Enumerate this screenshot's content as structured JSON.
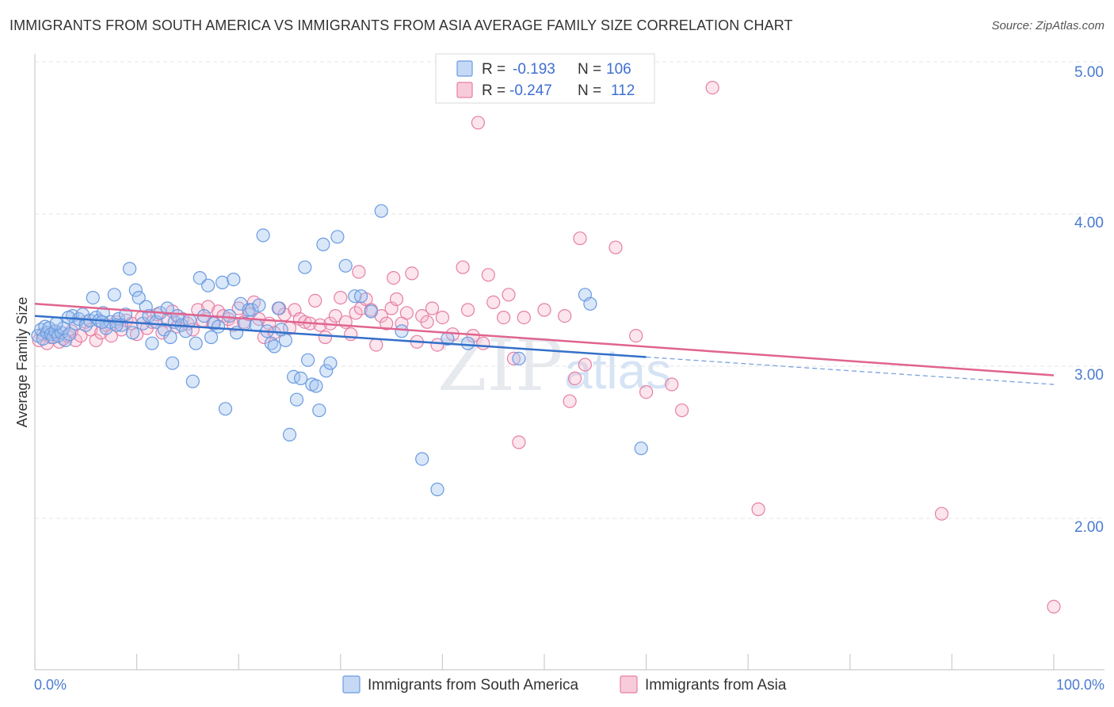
{
  "title": "IMMIGRANTS FROM SOUTH AMERICA VS IMMIGRANTS FROM ASIA AVERAGE FAMILY SIZE CORRELATION CHART",
  "source": "Source: ZipAtlas.com",
  "watermark": {
    "zip": "ZIP",
    "atlas": "atlas"
  },
  "stats": {
    "r_label": "R =",
    "n_label": "N =",
    "rows": [
      {
        "series": "Immigrants from South America",
        "r": "-0.193",
        "n": "106",
        "color": "#6a9be0",
        "fill": "#c5d9f6"
      },
      {
        "series": "Immigrants from Asia",
        "r": "-0.247",
        "n": "112",
        "color": "#e57fa4",
        "fill": "#f8cbda"
      }
    ]
  },
  "legend": [
    {
      "label": "Immigrants from South America",
      "fill": "#c5d9f6",
      "stroke": "#6a9be0"
    },
    {
      "label": "Immigrants from Asia",
      "fill": "#f8cbda",
      "stroke": "#e57fa4"
    }
  ],
  "chart_data": {
    "type": "scatter",
    "xlabel": "",
    "ylabel": "Average Family Size",
    "xlim": [
      0,
      100
    ],
    "ylim": [
      1.0,
      5.1
    ],
    "x_tick_labels": [
      {
        "value": 0,
        "label": "0.0%"
      },
      {
        "value": 100,
        "label": "100.0%"
      }
    ],
    "y_ticks": [
      2.0,
      3.0,
      4.0,
      5.0
    ],
    "y_tick_labels": [
      "2.00",
      "3.00",
      "4.00",
      "5.00"
    ],
    "grid": "horizontal dashed",
    "legend_position": "bottom",
    "series": [
      {
        "name": "Immigrants from South America",
        "color": "#6a9be0",
        "trend": {
          "x": [
            0,
            60
          ],
          "y": [
            3.33,
            3.06
          ],
          "dashed_to": [
            100,
            2.88
          ]
        },
        "points": [
          [
            0.3,
            3.2
          ],
          [
            0.6,
            3.24
          ],
          [
            0.8,
            3.18
          ],
          [
            1.0,
            3.26
          ],
          [
            1.2,
            3.22
          ],
          [
            1.4,
            3.25
          ],
          [
            1.6,
            3.21
          ],
          [
            1.8,
            3.19
          ],
          [
            2.0,
            3.23
          ],
          [
            2.3,
            3.2
          ],
          [
            2.6,
            3.22
          ],
          [
            2.8,
            3.25
          ],
          [
            3.0,
            3.17
          ],
          [
            3.4,
            3.21
          ],
          [
            3.7,
            3.33
          ],
          [
            4.0,
            3.28
          ],
          [
            4.3,
            3.31
          ],
          [
            4.7,
            3.34
          ],
          [
            5.0,
            3.27
          ],
          [
            5.4,
            3.3
          ],
          [
            5.7,
            3.45
          ],
          [
            6.0,
            3.32
          ],
          [
            6.3,
            3.3
          ],
          [
            6.7,
            3.35
          ],
          [
            7.0,
            3.25
          ],
          [
            7.4,
            3.29
          ],
          [
            7.8,
            3.47
          ],
          [
            8.2,
            3.31
          ],
          [
            8.5,
            3.27
          ],
          [
            8.9,
            3.34
          ],
          [
            9.3,
            3.64
          ],
          [
            9.6,
            3.22
          ],
          [
            9.9,
            3.5
          ],
          [
            10.2,
            3.45
          ],
          [
            10.6,
            3.28
          ],
          [
            10.9,
            3.39
          ],
          [
            11.2,
            3.33
          ],
          [
            11.5,
            3.15
          ],
          [
            11.9,
            3.29
          ],
          [
            12.3,
            3.35
          ],
          [
            12.7,
            3.24
          ],
          [
            13.0,
            3.38
          ],
          [
            13.3,
            3.19
          ],
          [
            13.7,
            3.29
          ],
          [
            14.0,
            3.33
          ],
          [
            13.5,
            3.02
          ],
          [
            14.4,
            3.27
          ],
          [
            14.8,
            3.23
          ],
          [
            15.2,
            3.3
          ],
          [
            15.5,
            2.9
          ],
          [
            15.8,
            3.15
          ],
          [
            16.2,
            3.58
          ],
          [
            16.6,
            3.33
          ],
          [
            17.0,
            3.53
          ],
          [
            17.3,
            3.19
          ],
          [
            17.6,
            3.28
          ],
          [
            18.0,
            3.26
          ],
          [
            18.4,
            3.55
          ],
          [
            18.7,
            2.72
          ],
          [
            19.1,
            3.33
          ],
          [
            19.5,
            3.57
          ],
          [
            19.8,
            3.22
          ],
          [
            20.2,
            3.41
          ],
          [
            20.6,
            3.28
          ],
          [
            21.0,
            3.37
          ],
          [
            21.3,
            3.37
          ],
          [
            21.7,
            3.27
          ],
          [
            22.0,
            3.4
          ],
          [
            22.4,
            3.86
          ],
          [
            22.8,
            3.23
          ],
          [
            23.2,
            3.15
          ],
          [
            23.5,
            3.13
          ],
          [
            23.9,
            3.38
          ],
          [
            24.2,
            3.24
          ],
          [
            24.6,
            3.17
          ],
          [
            25.0,
            2.55
          ],
          [
            25.4,
            2.93
          ],
          [
            25.7,
            2.78
          ],
          [
            26.1,
            2.92
          ],
          [
            26.5,
            3.65
          ],
          [
            26.8,
            3.04
          ],
          [
            27.2,
            2.88
          ],
          [
            27.6,
            2.87
          ],
          [
            27.9,
            2.71
          ],
          [
            28.3,
            3.8
          ],
          [
            28.6,
            2.97
          ],
          [
            29.0,
            3.02
          ],
          [
            29.7,
            3.85
          ],
          [
            30.5,
            3.66
          ],
          [
            31.4,
            3.46
          ],
          [
            32.0,
            3.46
          ],
          [
            33.0,
            3.36
          ],
          [
            34.0,
            4.02
          ],
          [
            36.0,
            3.23
          ],
          [
            38.0,
            2.39
          ],
          [
            39.5,
            2.19
          ],
          [
            40.5,
            3.18
          ],
          [
            42.5,
            3.15
          ],
          [
            47.5,
            3.05
          ],
          [
            54.0,
            3.47
          ],
          [
            54.5,
            3.41
          ],
          [
            59.5,
            2.46
          ],
          [
            2.1,
            3.28
          ],
          [
            3.3,
            3.32
          ],
          [
            6.6,
            3.29
          ],
          [
            8.0,
            3.27
          ]
        ]
      },
      {
        "name": "Immigrants from Asia",
        "color": "#e57fa4",
        "trend": {
          "x": [
            0,
            100
          ],
          "y": [
            3.41,
            2.94
          ]
        },
        "points": [
          [
            0.4,
            3.17
          ],
          [
            0.8,
            3.21
          ],
          [
            1.2,
            3.15
          ],
          [
            1.6,
            3.19
          ],
          [
            2.0,
            3.22
          ],
          [
            2.4,
            3.16
          ],
          [
            2.8,
            3.18
          ],
          [
            3.2,
            3.2
          ],
          [
            3.6,
            3.23
          ],
          [
            4.0,
            3.17
          ],
          [
            4.5,
            3.2
          ],
          [
            5.0,
            3.29
          ],
          [
            5.5,
            3.24
          ],
          [
            6.0,
            3.17
          ],
          [
            6.5,
            3.22
          ],
          [
            7.0,
            3.27
          ],
          [
            7.5,
            3.2
          ],
          [
            8.0,
            3.29
          ],
          [
            8.5,
            3.24
          ],
          [
            9.0,
            3.3
          ],
          [
            9.5,
            3.28
          ],
          [
            10.0,
            3.21
          ],
          [
            10.5,
            3.32
          ],
          [
            11.0,
            3.25
          ],
          [
            11.5,
            3.29
          ],
          [
            12.0,
            3.34
          ],
          [
            12.5,
            3.22
          ],
          [
            13.0,
            3.3
          ],
          [
            13.5,
            3.36
          ],
          [
            14.0,
            3.26
          ],
          [
            14.5,
            3.31
          ],
          [
            15.0,
            3.28
          ],
          [
            15.5,
            3.24
          ],
          [
            16.0,
            3.37
          ],
          [
            16.5,
            3.3
          ],
          [
            17.0,
            3.39
          ],
          [
            17.5,
            3.28
          ],
          [
            18.0,
            3.36
          ],
          [
            18.5,
            3.33
          ],
          [
            19.0,
            3.31
          ],
          [
            19.5,
            3.27
          ],
          [
            20.0,
            3.38
          ],
          [
            20.5,
            3.29
          ],
          [
            21.0,
            3.34
          ],
          [
            21.5,
            3.42
          ],
          [
            22.0,
            3.31
          ],
          [
            22.5,
            3.19
          ],
          [
            23.0,
            3.28
          ],
          [
            23.5,
            3.22
          ],
          [
            24.0,
            3.38
          ],
          [
            24.5,
            3.34
          ],
          [
            25.0,
            3.25
          ],
          [
            25.5,
            3.37
          ],
          [
            26.0,
            3.31
          ],
          [
            26.5,
            3.29
          ],
          [
            27.0,
            3.28
          ],
          [
            27.5,
            3.43
          ],
          [
            28.0,
            3.27
          ],
          [
            28.5,
            3.19
          ],
          [
            29.0,
            3.28
          ],
          [
            29.5,
            3.33
          ],
          [
            30.0,
            3.45
          ],
          [
            30.5,
            3.29
          ],
          [
            31.0,
            3.21
          ],
          [
            31.5,
            3.35
          ],
          [
            32.0,
            3.38
          ],
          [
            32.5,
            3.44
          ],
          [
            33.0,
            3.37
          ],
          [
            33.5,
            3.14
          ],
          [
            34.0,
            3.33
          ],
          [
            34.5,
            3.28
          ],
          [
            35.0,
            3.38
          ],
          [
            35.5,
            3.44
          ],
          [
            36.0,
            3.28
          ],
          [
            36.5,
            3.35
          ],
          [
            37.0,
            3.61
          ],
          [
            37.5,
            3.16
          ],
          [
            38.0,
            3.33
          ],
          [
            38.5,
            3.29
          ],
          [
            39.0,
            3.38
          ],
          [
            39.5,
            3.14
          ],
          [
            40.0,
            3.32
          ],
          [
            41.0,
            3.21
          ],
          [
            42.0,
            3.65
          ],
          [
            42.5,
            3.37
          ],
          [
            43.0,
            3.2
          ],
          [
            43.5,
            4.6
          ],
          [
            44.0,
            3.15
          ],
          [
            44.5,
            3.6
          ],
          [
            45.0,
            3.42
          ],
          [
            46.0,
            3.32
          ],
          [
            46.5,
            3.47
          ],
          [
            47.0,
            3.05
          ],
          [
            47.5,
            2.5
          ],
          [
            48.0,
            3.32
          ],
          [
            50.0,
            3.37
          ],
          [
            52.0,
            3.33
          ],
          [
            52.5,
            2.77
          ],
          [
            53.0,
            2.92
          ],
          [
            53.5,
            3.84
          ],
          [
            54.0,
            3.01
          ],
          [
            57.0,
            3.78
          ],
          [
            59.0,
            3.2
          ],
          [
            60.0,
            2.83
          ],
          [
            62.5,
            2.88
          ],
          [
            63.5,
            2.71
          ],
          [
            66.5,
            4.83
          ],
          [
            71.0,
            2.06
          ],
          [
            89.0,
            2.03
          ],
          [
            100.0,
            1.42
          ],
          [
            35.2,
            3.58
          ],
          [
            31.8,
            3.62
          ]
        ]
      }
    ]
  }
}
